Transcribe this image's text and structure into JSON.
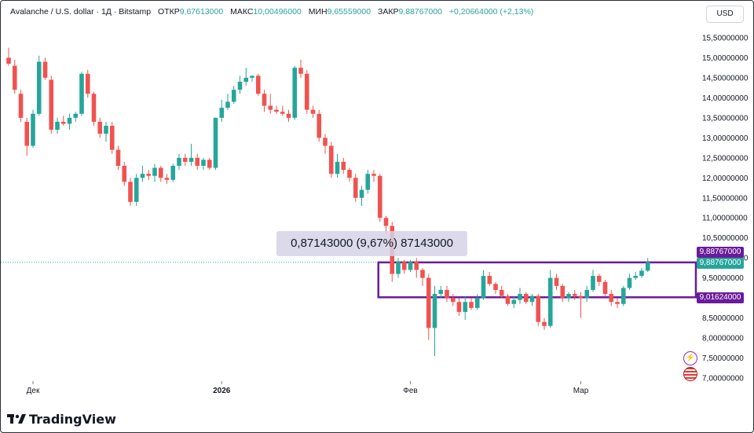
{
  "header": {
    "symbol": "Avalanche / U.S. dollar · 1Д · Bitstamp",
    "open_label": "ОТКР",
    "open": "9,67613000",
    "high_label": "МАКС",
    "high": "10,00496000",
    "low_label": "МИН",
    "low": "9,65559000",
    "close_label": "ЗАКР",
    "close": "9,88767000",
    "change": "+0,20664000 (+2,13%)"
  },
  "currency": "USD",
  "measure_label": "0,87143000 (9,67%) 87143000",
  "price_tags": {
    "top": "9,88767000",
    "last": "9,88767000",
    "bottom": "9,01624000"
  },
  "logo_text": "TradingView",
  "colors": {
    "up": "#26a69a",
    "down": "#ef5350",
    "box": "#6a1b9a",
    "last_tag": "#26a69a",
    "box_tag": "#6a1b9a"
  },
  "icons": [
    "lightning-icon",
    "us-flag-icon"
  ],
  "chart_data": {
    "type": "candlestick",
    "title": "",
    "y_axis": {
      "min": 7.0,
      "max": 15.5,
      "step": 0.5,
      "side": "right",
      "tick_labels": [
        "7,00000000",
        "7,50000000",
        "8,00000000",
        "8,50000000",
        "9,00000000",
        "9,50000000",
        "10,00000000",
        "10,50000000",
        "11,00000000",
        "11,50000000",
        "12,00000000",
        "12,50000000",
        "13,00000000",
        "13,50000000",
        "14,00000000",
        "14,50000000",
        "15,00000000",
        "15,50000000"
      ]
    },
    "x_axis": {
      "tick_labels": [
        {
          "label": "Дек",
          "bold": false,
          "index": 4
        },
        {
          "label": "2026",
          "bold": true,
          "index": 35
        },
        {
          "label": "Фев",
          "bold": false,
          "index": 66
        },
        {
          "label": "Мар",
          "bold": false,
          "index": 94
        }
      ]
    },
    "grid": false,
    "last_price": 9.88767,
    "box": {
      "top": 9.88767,
      "bottom": 9.01624,
      "start_index": 57,
      "extends_to_end": true
    },
    "candles": [
      {
        "o": 15.0,
        "h": 15.25,
        "l": 14.8,
        "c": 14.85
      },
      {
        "o": 14.8,
        "h": 14.95,
        "l": 14.1,
        "c": 14.2
      },
      {
        "o": 14.1,
        "h": 14.2,
        "l": 13.4,
        "c": 13.5
      },
      {
        "o": 13.4,
        "h": 13.5,
        "l": 12.55,
        "c": 12.8
      },
      {
        "o": 12.8,
        "h": 13.7,
        "l": 12.75,
        "c": 13.6
      },
      {
        "o": 13.6,
        "h": 15.05,
        "l": 13.55,
        "c": 14.9
      },
      {
        "o": 14.9,
        "h": 15.0,
        "l": 14.45,
        "c": 14.5
      },
      {
        "o": 14.45,
        "h": 14.55,
        "l": 13.1,
        "c": 13.2
      },
      {
        "o": 13.2,
        "h": 13.5,
        "l": 13.1,
        "c": 13.4
      },
      {
        "o": 13.4,
        "h": 13.55,
        "l": 13.3,
        "c": 13.35
      },
      {
        "o": 13.35,
        "h": 13.6,
        "l": 13.2,
        "c": 13.5
      },
      {
        "o": 13.5,
        "h": 13.65,
        "l": 13.4,
        "c": 13.6
      },
      {
        "o": 13.6,
        "h": 14.65,
        "l": 13.55,
        "c": 14.6
      },
      {
        "o": 14.6,
        "h": 14.7,
        "l": 14.0,
        "c": 14.1
      },
      {
        "o": 14.1,
        "h": 14.15,
        "l": 13.3,
        "c": 13.4
      },
      {
        "o": 13.4,
        "h": 13.5,
        "l": 13.0,
        "c": 13.1
      },
      {
        "o": 13.1,
        "h": 13.4,
        "l": 12.9,
        "c": 13.3
      },
      {
        "o": 13.3,
        "h": 13.4,
        "l": 12.6,
        "c": 12.7
      },
      {
        "o": 12.7,
        "h": 12.8,
        "l": 12.2,
        "c": 12.3
      },
      {
        "o": 12.3,
        "h": 12.4,
        "l": 11.8,
        "c": 11.9
      },
      {
        "o": 11.9,
        "h": 12.0,
        "l": 11.3,
        "c": 11.4
      },
      {
        "o": 11.4,
        "h": 12.1,
        "l": 11.3,
        "c": 12.0
      },
      {
        "o": 12.0,
        "h": 12.3,
        "l": 11.9,
        "c": 12.1
      },
      {
        "o": 12.1,
        "h": 12.2,
        "l": 11.95,
        "c": 12.05
      },
      {
        "o": 12.05,
        "h": 12.35,
        "l": 11.9,
        "c": 12.25
      },
      {
        "o": 12.25,
        "h": 12.3,
        "l": 11.9,
        "c": 12.0
      },
      {
        "o": 12.0,
        "h": 12.1,
        "l": 11.85,
        "c": 11.95
      },
      {
        "o": 11.95,
        "h": 12.35,
        "l": 11.9,
        "c": 12.3
      },
      {
        "o": 12.3,
        "h": 12.6,
        "l": 12.2,
        "c": 12.5
      },
      {
        "o": 12.5,
        "h": 12.6,
        "l": 12.3,
        "c": 12.4
      },
      {
        "o": 12.4,
        "h": 12.85,
        "l": 12.3,
        "c": 12.5
      },
      {
        "o": 12.5,
        "h": 12.6,
        "l": 12.2,
        "c": 12.3
      },
      {
        "o": 12.3,
        "h": 12.5,
        "l": 12.2,
        "c": 12.45
      },
      {
        "o": 12.45,
        "h": 12.5,
        "l": 12.2,
        "c": 12.25
      },
      {
        "o": 12.25,
        "h": 13.5,
        "l": 12.2,
        "c": 13.5
      },
      {
        "o": 13.5,
        "h": 13.95,
        "l": 13.4,
        "c": 13.75
      },
      {
        "o": 13.75,
        "h": 14.1,
        "l": 13.7,
        "c": 13.9
      },
      {
        "o": 13.9,
        "h": 14.3,
        "l": 13.85,
        "c": 14.2
      },
      {
        "o": 14.2,
        "h": 14.55,
        "l": 14.1,
        "c": 14.4
      },
      {
        "o": 14.4,
        "h": 14.75,
        "l": 14.3,
        "c": 14.5
      },
      {
        "o": 14.5,
        "h": 14.55,
        "l": 14.4,
        "c": 14.55
      },
      {
        "o": 14.55,
        "h": 14.6,
        "l": 14.05,
        "c": 14.1
      },
      {
        "o": 14.1,
        "h": 14.2,
        "l": 13.65,
        "c": 13.8
      },
      {
        "o": 13.8,
        "h": 14.1,
        "l": 13.6,
        "c": 13.7
      },
      {
        "o": 13.7,
        "h": 13.8,
        "l": 13.6,
        "c": 13.65
      },
      {
        "o": 13.65,
        "h": 13.8,
        "l": 13.55,
        "c": 13.6
      },
      {
        "o": 13.6,
        "h": 13.7,
        "l": 13.4,
        "c": 13.5
      },
      {
        "o": 13.5,
        "h": 14.8,
        "l": 13.45,
        "c": 14.75
      },
      {
        "o": 14.75,
        "h": 14.95,
        "l": 14.5,
        "c": 14.6
      },
      {
        "o": 14.6,
        "h": 14.7,
        "l": 13.6,
        "c": 13.7
      },
      {
        "o": 13.7,
        "h": 13.8,
        "l": 13.5,
        "c": 13.6
      },
      {
        "o": 13.6,
        "h": 13.7,
        "l": 12.9,
        "c": 13.0
      },
      {
        "o": 13.0,
        "h": 13.1,
        "l": 12.6,
        "c": 12.8
      },
      {
        "o": 12.8,
        "h": 12.9,
        "l": 12.0,
        "c": 12.1
      },
      {
        "o": 12.1,
        "h": 12.6,
        "l": 12.0,
        "c": 12.4
      },
      {
        "o": 12.4,
        "h": 12.5,
        "l": 12.1,
        "c": 12.2
      },
      {
        "o": 12.2,
        "h": 12.25,
        "l": 11.9,
        "c": 12.0
      },
      {
        "o": 12.0,
        "h": 12.1,
        "l": 11.4,
        "c": 11.5
      },
      {
        "o": 11.5,
        "h": 11.8,
        "l": 11.3,
        "c": 11.7
      },
      {
        "o": 11.7,
        "h": 12.2,
        "l": 11.6,
        "c": 12.1
      },
      {
        "o": 12.1,
        "h": 12.2,
        "l": 11.9,
        "c": 12.05
      },
      {
        "o": 12.05,
        "h": 12.1,
        "l": 10.9,
        "c": 11.0
      },
      {
        "o": 11.0,
        "h": 11.05,
        "l": 10.6,
        "c": 10.8
      },
      {
        "o": 10.8,
        "h": 10.9,
        "l": 9.4,
        "c": 9.6
      },
      {
        "o": 9.6,
        "h": 10.0,
        "l": 9.5,
        "c": 9.9
      },
      {
        "o": 9.9,
        "h": 9.95,
        "l": 9.6,
        "c": 9.7
      },
      {
        "o": 9.7,
        "h": 9.95,
        "l": 9.65,
        "c": 9.9
      },
      {
        "o": 9.9,
        "h": 10.0,
        "l": 9.5,
        "c": 9.7
      },
      {
        "o": 9.7,
        "h": 9.75,
        "l": 9.3,
        "c": 9.5
      },
      {
        "o": 9.5,
        "h": 9.6,
        "l": 7.95,
        "c": 8.25
      },
      {
        "o": 8.25,
        "h": 9.3,
        "l": 7.55,
        "c": 9.1
      },
      {
        "o": 9.1,
        "h": 9.3,
        "l": 9.0,
        "c": 9.2
      },
      {
        "o": 9.2,
        "h": 9.3,
        "l": 8.9,
        "c": 9.0
      },
      {
        "o": 9.0,
        "h": 9.1,
        "l": 8.8,
        "c": 8.9
      },
      {
        "o": 8.9,
        "h": 9.0,
        "l": 8.55,
        "c": 8.65
      },
      {
        "o": 8.65,
        "h": 9.05,
        "l": 8.45,
        "c": 8.9
      },
      {
        "o": 8.9,
        "h": 9.0,
        "l": 8.7,
        "c": 8.75
      },
      {
        "o": 8.75,
        "h": 9.1,
        "l": 8.7,
        "c": 9.0
      },
      {
        "o": 9.0,
        "h": 9.7,
        "l": 8.95,
        "c": 9.55
      },
      {
        "o": 9.55,
        "h": 9.65,
        "l": 9.3,
        "c": 9.35
      },
      {
        "o": 9.35,
        "h": 9.4,
        "l": 9.1,
        "c": 9.2
      },
      {
        "o": 9.2,
        "h": 9.3,
        "l": 9.0,
        "c": 9.05
      },
      {
        "o": 9.05,
        "h": 9.1,
        "l": 8.8,
        "c": 8.85
      },
      {
        "o": 8.85,
        "h": 9.05,
        "l": 8.75,
        "c": 8.95
      },
      {
        "o": 8.95,
        "h": 9.25,
        "l": 8.85,
        "c": 9.1
      },
      {
        "o": 9.1,
        "h": 9.15,
        "l": 8.85,
        "c": 8.9
      },
      {
        "o": 8.9,
        "h": 9.1,
        "l": 8.8,
        "c": 9.05
      },
      {
        "o": 9.05,
        "h": 9.1,
        "l": 8.3,
        "c": 8.4
      },
      {
        "o": 8.4,
        "h": 8.5,
        "l": 8.2,
        "c": 8.3
      },
      {
        "o": 8.3,
        "h": 9.7,
        "l": 8.25,
        "c": 9.5
      },
      {
        "o": 9.5,
        "h": 9.6,
        "l": 9.2,
        "c": 9.3
      },
      {
        "o": 9.3,
        "h": 9.35,
        "l": 8.9,
        "c": 9.0
      },
      {
        "o": 9.0,
        "h": 9.15,
        "l": 8.9,
        "c": 9.1
      },
      {
        "o": 9.1,
        "h": 9.2,
        "l": 8.95,
        "c": 9.05
      },
      {
        "o": 9.05,
        "h": 9.15,
        "l": 8.5,
        "c": 9.0
      },
      {
        "o": 9.0,
        "h": 9.3,
        "l": 8.9,
        "c": 9.2
      },
      {
        "o": 9.2,
        "h": 9.7,
        "l": 9.15,
        "c": 9.55
      },
      {
        "o": 9.55,
        "h": 9.6,
        "l": 9.3,
        "c": 9.4
      },
      {
        "o": 9.4,
        "h": 9.45,
        "l": 9.05,
        "c": 9.1
      },
      {
        "o": 9.1,
        "h": 9.2,
        "l": 8.8,
        "c": 8.9
      },
      {
        "o": 8.9,
        "h": 9.0,
        "l": 8.75,
        "c": 8.85
      },
      {
        "o": 8.85,
        "h": 9.3,
        "l": 8.8,
        "c": 9.25
      },
      {
        "o": 9.25,
        "h": 9.6,
        "l": 9.2,
        "c": 9.5
      },
      {
        "o": 9.5,
        "h": 9.65,
        "l": 9.45,
        "c": 9.55
      },
      {
        "o": 9.55,
        "h": 9.75,
        "l": 9.5,
        "c": 9.68
      },
      {
        "o": 9.68,
        "h": 10.0,
        "l": 9.65,
        "c": 9.89
      }
    ]
  }
}
